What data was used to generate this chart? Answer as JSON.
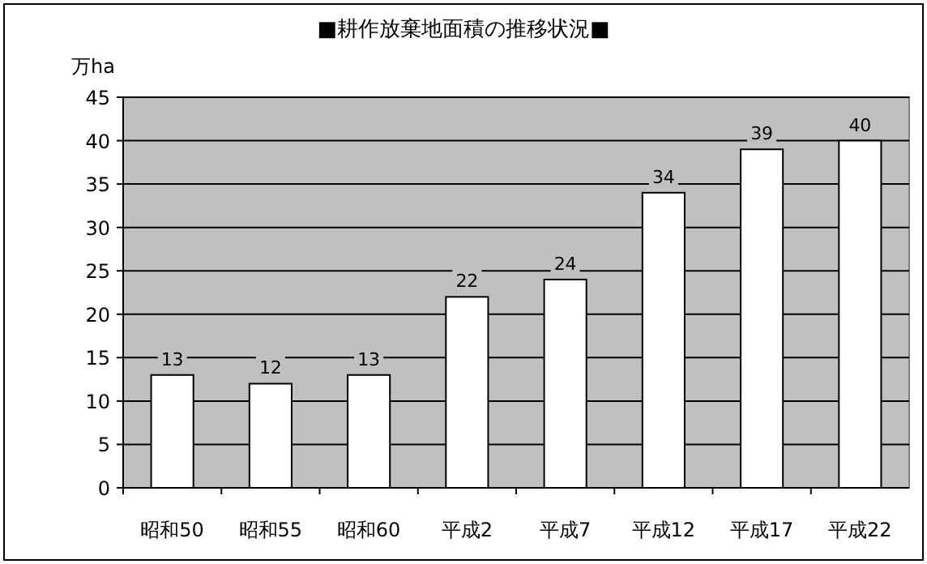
{
  "chart_data": {
    "type": "bar",
    "title": "■耕作放棄地面積の推移状況■",
    "ylabel": "万ha",
    "categories": [
      "昭和50",
      "昭和55",
      "昭和60",
      "平成2",
      "平成7",
      "平成12",
      "平成17",
      "平成22"
    ],
    "values": [
      13,
      12,
      13,
      22,
      24,
      34,
      39,
      40
    ],
    "color": "#ffffff",
    "ylim": [
      0,
      45
    ],
    "yticks": [
      0,
      5,
      10,
      15,
      20,
      25,
      30,
      35,
      40,
      45
    ],
    "grid": "y",
    "data_labels": true
  }
}
